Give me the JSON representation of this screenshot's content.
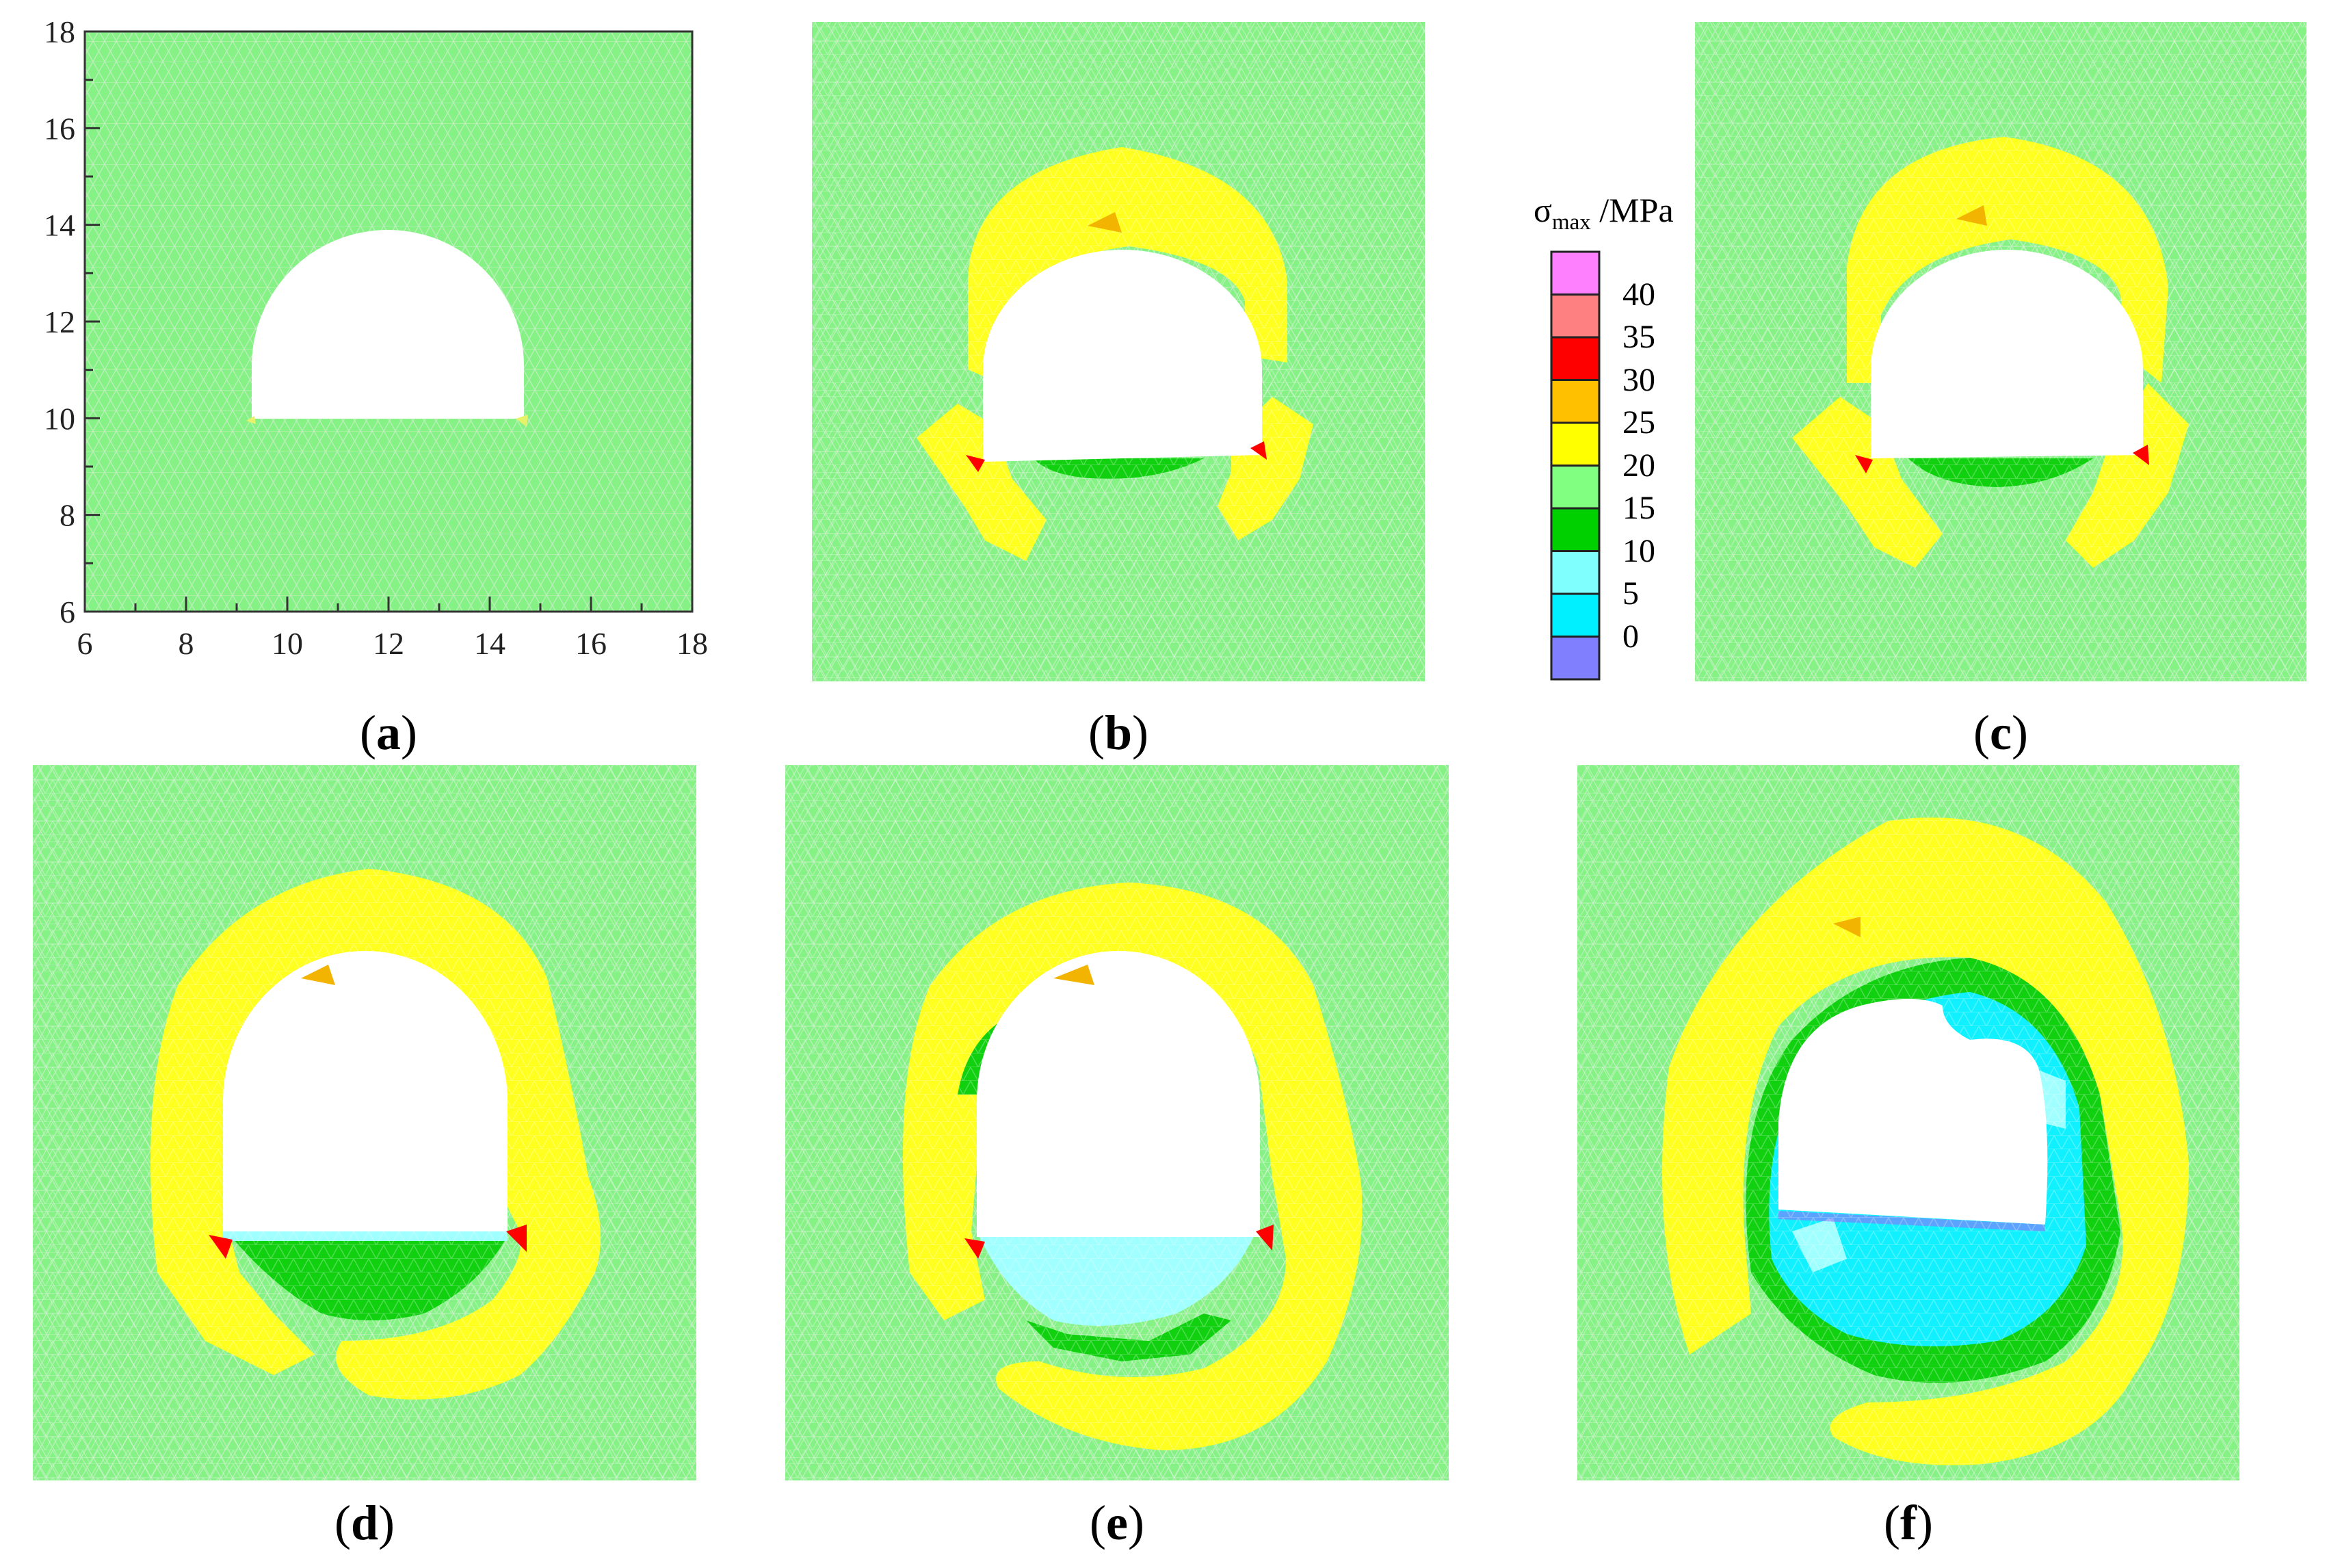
{
  "panels": [
    {
      "id": "a",
      "label": "a",
      "stage": 0
    },
    {
      "id": "b",
      "label": "b",
      "stage": 1
    },
    {
      "id": "c",
      "label": "c",
      "stage": 2
    },
    {
      "id": "d",
      "label": "d",
      "stage": 3
    },
    {
      "id": "e",
      "label": "e",
      "stage": 4
    },
    {
      "id": "f",
      "label": "f",
      "stage": 5
    }
  ],
  "axes_a": {
    "x_ticks": [
      "6",
      "8",
      "10",
      "12",
      "14",
      "16",
      "18"
    ],
    "y_ticks": [
      "18",
      "16",
      "14",
      "12",
      "10",
      "8",
      "6"
    ],
    "xlim": [
      6,
      18
    ],
    "ylim": [
      6,
      18
    ]
  },
  "legend": {
    "title_main": "σ",
    "title_sub": "max",
    "title_unit": " /MPa",
    "labels": [
      "40",
      "35",
      "30",
      "25",
      "20",
      "15",
      "10",
      "5",
      "0"
    ],
    "colors": [
      "#ff80ff",
      "#ff8080",
      "#ff0000",
      "#ffc000",
      "#ffff00",
      "#80ff80",
      "#00d000",
      "#80ffff",
      "#00f0ff",
      "#8080ff"
    ]
  },
  "colors": {
    "background_rock": "#86f286",
    "mesh": "#c8f5c8",
    "zone_20_25": "#ffff20",
    "zone_25_30": "#f2b400",
    "zone_30_35": "#ff0000",
    "zone_10_15": "#10d010",
    "zone_5_10": "#a0ffff",
    "zone_0_5": "#10f0ff",
    "zone_neg": "#9070ff",
    "tunnel": "#ffffff"
  }
}
